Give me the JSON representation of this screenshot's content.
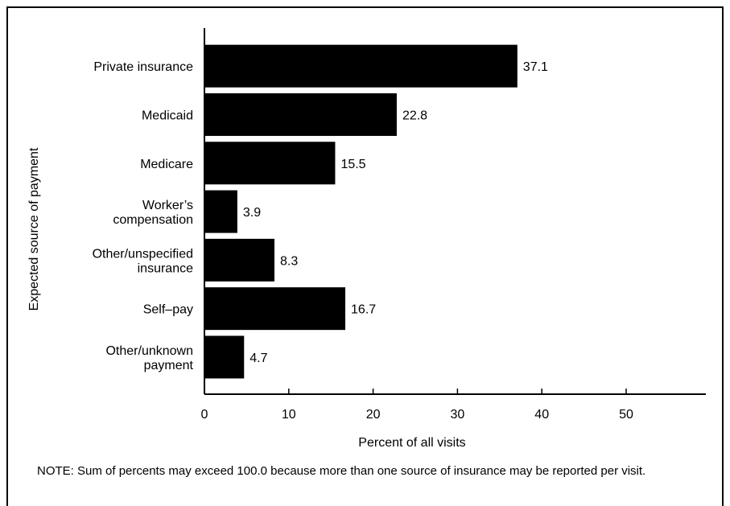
{
  "chart_data": {
    "type": "bar",
    "orientation": "horizontal",
    "categories": [
      [
        "Private insurance"
      ],
      [
        "Medicaid"
      ],
      [
        "Medicare"
      ],
      [
        "Worker’s",
        "compensation"
      ],
      [
        "Other/unspecified",
        "insurance"
      ],
      [
        "Self–pay"
      ],
      [
        "Other/unknown",
        "payment"
      ]
    ],
    "values": [
      37.1,
      22.8,
      15.5,
      3.9,
      8.3,
      16.7,
      4.7
    ],
    "value_labels": [
      "37.1",
      "22.8",
      "15.5",
      "3.9",
      "8.3",
      "16.7",
      "4.7"
    ],
    "xlabel": "Percent of all visits",
    "ylabel": "Expected source of payment",
    "xticks": [
      0,
      10,
      20,
      30,
      40,
      50
    ],
    "xlim": [
      0,
      59
    ],
    "bar_color": "#000000",
    "grid": false
  },
  "note": "NOTE: Sum of percents may exceed 100.0 because more than one source of insurance may be reported per visit."
}
